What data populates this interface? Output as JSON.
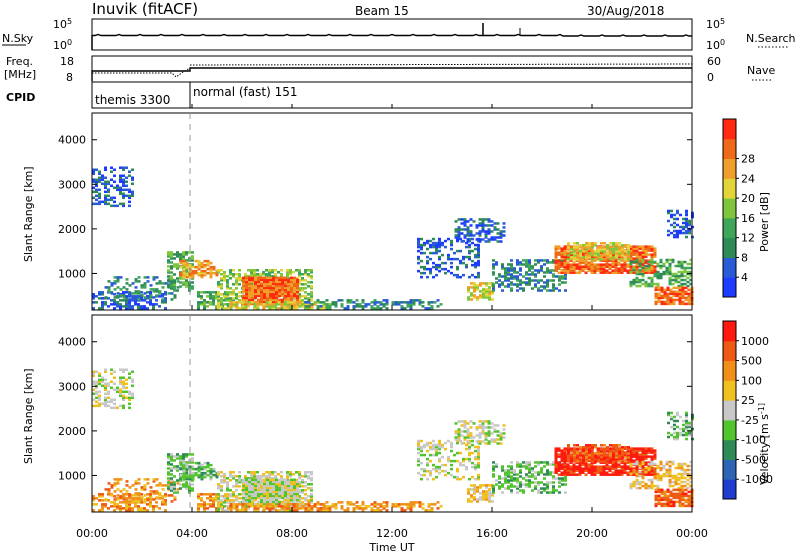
{
  "header": {
    "title": "Inuvik (fitACF)",
    "beam": "Beam 15",
    "date": "30/Aug/2018"
  },
  "sky_panel": {
    "left_label": "N.Sky",
    "right_label": "N.Search",
    "left_ticks": [
      "10^5",
      "10^0"
    ],
    "right_ticks": [
      "10^5",
      "10^0"
    ]
  },
  "freq_panel": {
    "left_label_line1": "Freq.",
    "left_label_line2": "[MHz]",
    "right_label": "Nave",
    "left_ticks": [
      "18",
      "8"
    ],
    "right_ticks": [
      "60",
      "0"
    ]
  },
  "cpid_panel": {
    "label": "CPID",
    "modes": [
      {
        "name": "themis 3300",
        "start_hour": 0,
        "end_hour": 3.85
      },
      {
        "name": "normal (fast) 151",
        "start_hour": 3.85,
        "end_hour": 24
      }
    ]
  },
  "chart_data": [
    {
      "type": "heatmap",
      "name": "power",
      "ylabel": "Slant Range [km]",
      "y_ticks": [
        "1000",
        "2000",
        "3000",
        "4000"
      ],
      "ylim": [
        180,
        4600
      ],
      "colorbar_label": "Power [dB]",
      "colorbar_ticks": [
        "4",
        "8",
        "12",
        "16",
        "20",
        "24",
        "28"
      ],
      "colorbar_colors": [
        "#1e3cff",
        "#2a5bd7",
        "#2e8b57",
        "#3ea55a",
        "#7fc63c",
        "#e3d43a",
        "#f0a02a",
        "#ee6a18",
        "#ff2a10"
      ]
    },
    {
      "type": "heatmap",
      "name": "velocity",
      "xlabel": "Time UT",
      "ylabel": "Slant Range [km]",
      "x_ticks": [
        "00:00",
        "04:00",
        "08:00",
        "12:00",
        "16:00",
        "20:00",
        "00:00"
      ],
      "y_ticks": [
        "1000",
        "2000",
        "3000",
        "4000"
      ],
      "ylim": [
        180,
        4600
      ],
      "colorbar_label": "Velocity [m s^-1]",
      "colorbar_ticks": [
        "1000",
        "500",
        "100",
        "25",
        "-25",
        "-100",
        "-500",
        "-1000"
      ],
      "colorbar_colors": [
        "#1e3ccd",
        "#2e64b4",
        "#2e8b57",
        "#52c42e",
        "#c8c8c8",
        "#f0c020",
        "#f09018",
        "#ee5a14",
        "#ff1a10"
      ]
    }
  ]
}
